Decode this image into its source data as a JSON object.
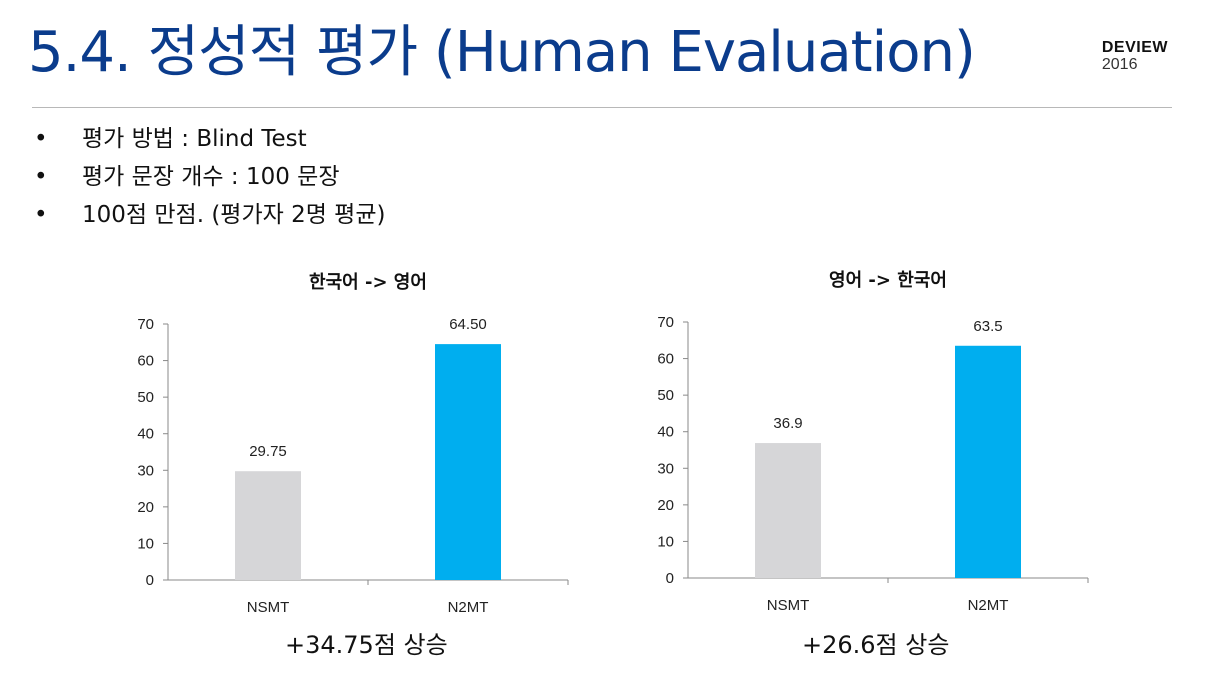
{
  "slide": {
    "title": "5.4. 정성적 평가 (Human Evaluation)",
    "logo": {
      "name": "DEVIEW",
      "year": "2016"
    },
    "bullets": [
      "평가 방법 : Blind Test",
      "평가 문장 개수 : 100 문장",
      "100점 만점. (평가자 2명 평균)"
    ],
    "bullet_symbol": "•"
  },
  "colors": {
    "title": "#0b3c8c",
    "nsmt": "#d6d6d8",
    "n2mt": "#00aeef",
    "axis": "#8a8a8a"
  },
  "chart_data": [
    {
      "type": "bar",
      "title": "한국어 -> 영어",
      "categories": [
        "NSMT",
        "N2MT"
      ],
      "values": [
        29.75,
        64.5
      ],
      "data_labels": [
        "29.75",
        "64.50"
      ],
      "yticks": [
        0,
        10,
        20,
        30,
        40,
        50,
        60,
        70
      ],
      "ylim": [
        0,
        70
      ],
      "grid": false,
      "legend": "none",
      "caption": "+34.75점  상승"
    },
    {
      "type": "bar",
      "title": "영어 -> 한국어",
      "categories": [
        "NSMT",
        "N2MT"
      ],
      "values": [
        36.9,
        63.5
      ],
      "data_labels": [
        "36.9",
        "63.5"
      ],
      "yticks": [
        0,
        10,
        20,
        30,
        40,
        50,
        60,
        70
      ],
      "ylim": [
        0,
        70
      ],
      "grid": false,
      "legend": "none",
      "caption": "+26.6점  상승"
    }
  ]
}
